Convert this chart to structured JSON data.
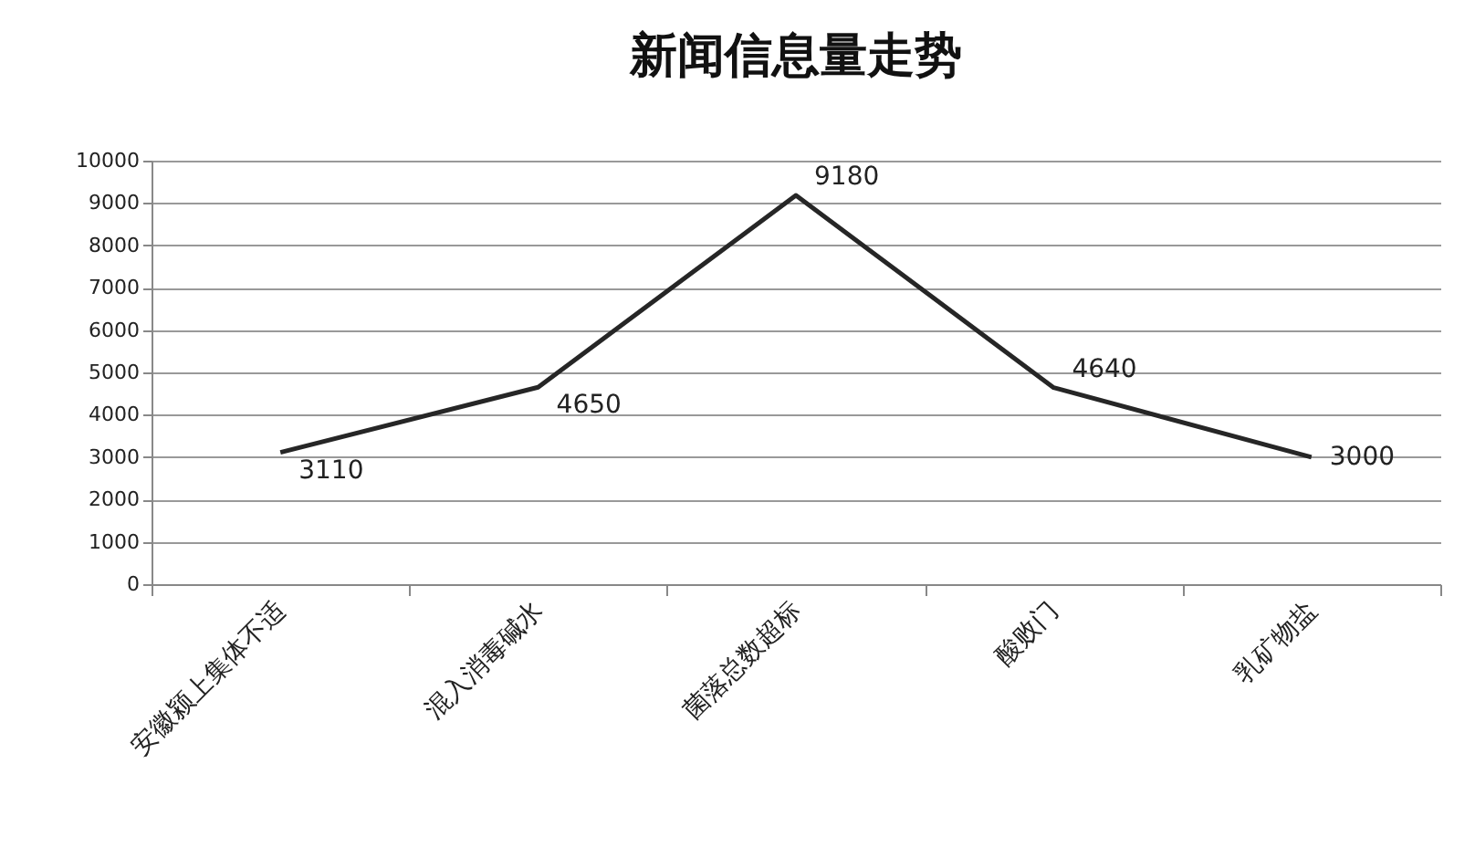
{
  "chart_data": {
    "type": "line",
    "title": "新闻信息量走势",
    "categories": [
      "安徽颍上集体不适",
      "混入消毒碱水",
      "菌落总数超标",
      "酸败门",
      "乳矿物盐"
    ],
    "series": [
      {
        "color": "#262626",
        "values": [
          3110,
          4650,
          9180,
          4640,
          3000
        ]
      }
    ],
    "ylim": [
      0,
      10000
    ],
    "yticks": [
      0,
      1000,
      2000,
      3000,
      4000,
      5000,
      6000,
      7000,
      8000,
      9000,
      10000
    ],
    "grid": "y",
    "legend": false,
    "marker": "none",
    "line_style": "solid",
    "data_labels": true
  }
}
